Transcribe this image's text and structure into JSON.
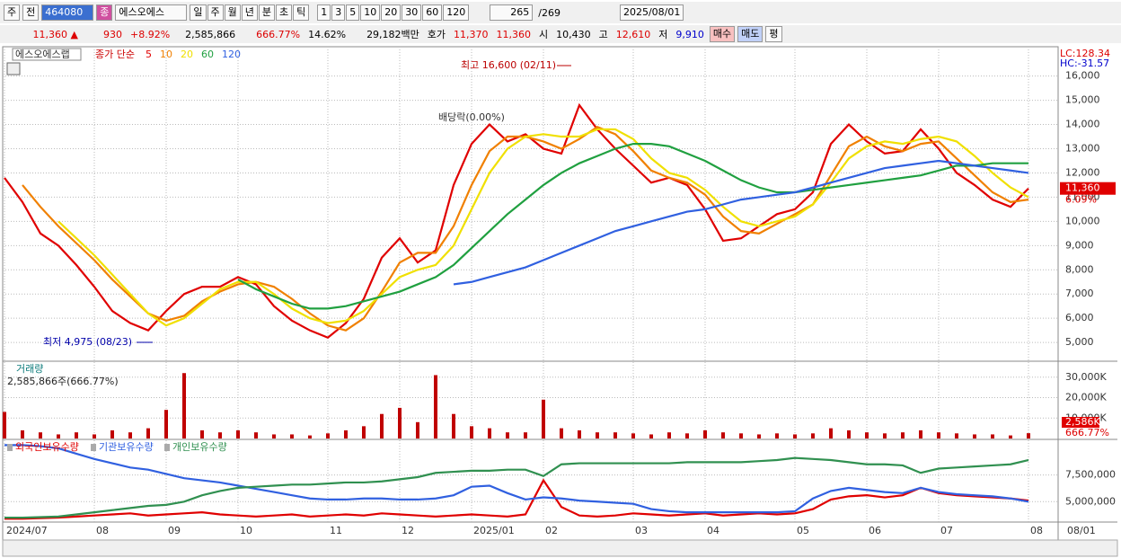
{
  "toolbar": {
    "market": "주",
    "prev": "전",
    "code": "464080",
    "badge": "종",
    "name": "에스오에스",
    "periods": [
      "일",
      "주",
      "월",
      "년",
      "분",
      "초",
      "틱"
    ],
    "intervals": [
      "1",
      "3",
      "5",
      "10",
      "20",
      "30",
      "60",
      "120"
    ],
    "count": "265",
    "total": "/269",
    "date": "2025/08/01"
  },
  "quote": {
    "price": "11,360 ▲",
    "change": "930",
    "change_pct": "+8.92%",
    "volume": "2,585,866",
    "volume_ratio": "666.77%",
    "turnover": "14.62%",
    "amount": "29,182백만",
    "ask_label": "호가",
    "ask": "11,370",
    "bid": "11,360",
    "open_label": "시",
    "open": "10,430",
    "high_label": "고",
    "high": "12,610",
    "low_label": "저",
    "low": "9,910",
    "buy": "매수",
    "sell": "매도",
    "avg": "평"
  },
  "chart_data": [
    {
      "type": "line",
      "title": "에스오에스랩",
      "subtitle": "종가 단순",
      "lc": "LC:128.34",
      "hc": "HC:-31.57",
      "last_label": "11,360",
      "last_pct": "6.09%",
      "last_value": 11360,
      "annotations": {
        "high": "최고 16,600 (02/11)",
        "low": "최저 4,975 (08/23)",
        "dividend": "배당락(0.00%)"
      },
      "categories": [
        "2024/07",
        null,
        null,
        null,
        null,
        "08",
        null,
        null,
        null,
        "09",
        null,
        null,
        null,
        "10",
        null,
        null,
        null,
        null,
        "11",
        null,
        null,
        null,
        "12",
        null,
        null,
        null,
        "2025/01",
        null,
        null,
        null,
        "02",
        null,
        null,
        null,
        null,
        "03",
        null,
        null,
        null,
        "04",
        null,
        null,
        null,
        null,
        "05",
        null,
        null,
        null,
        "06",
        null,
        null,
        null,
        "07",
        null,
        null,
        null,
        null,
        "08"
      ],
      "x_end_label": "08/01",
      "ylim": [
        4300,
        17100
      ],
      "yticks": [
        {
          "value": 5000,
          "label": "5,000"
        },
        {
          "value": 6000,
          "label": "6,000"
        },
        {
          "value": 7000,
          "label": "7,000"
        },
        {
          "value": 8000,
          "label": "8,000"
        },
        {
          "value": 9000,
          "label": "9,000"
        },
        {
          "value": 10000,
          "label": "10,000"
        },
        {
          "value": 11000,
          "label": "11,000"
        },
        {
          "value": 12000,
          "label": "12,000"
        },
        {
          "value": 13000,
          "label": "13,000"
        },
        {
          "value": 14000,
          "label": "14,000"
        },
        {
          "value": 15000,
          "label": "15,000"
        },
        {
          "value": 16000,
          "label": "16,000"
        }
      ],
      "grid": true,
      "series": [
        {
          "name": "5",
          "color": "#e00000",
          "values": [
            11800,
            10800,
            9500,
            9000,
            8200,
            7300,
            6300,
            5800,
            5500,
            6300,
            7000,
            7300,
            7300,
            7700,
            7400,
            6500,
            5900,
            5500,
            5200,
            5800,
            6800,
            8500,
            9300,
            8300,
            8800,
            11500,
            13200,
            14000,
            13300,
            13600,
            13000,
            12800,
            14800,
            13800,
            13000,
            12300,
            11600,
            11800,
            11500,
            10500,
            9200,
            9300,
            9800,
            10300,
            10500,
            11200,
            13200,
            14000,
            13300,
            12800,
            12900,
            13800,
            13000,
            12000,
            11500,
            10900,
            10600,
            11360
          ]
        },
        {
          "name": "10",
          "color": "#f08000",
          "values": [
            null,
            11500,
            10600,
            9800,
            9100,
            8400,
            7600,
            6900,
            6200,
            5900,
            6100,
            6700,
            7100,
            7400,
            7500,
            7300,
            6800,
            6200,
            5700,
            5500,
            6000,
            7100,
            8300,
            8700,
            8700,
            9800,
            11500,
            12900,
            13500,
            13500,
            13300,
            13000,
            13400,
            13900,
            13600,
            12900,
            12100,
            11800,
            11600,
            11100,
            10200,
            9600,
            9500,
            9900,
            10300,
            10700,
            11900,
            13100,
            13500,
            13100,
            12900,
            13200,
            13300,
            12600,
            11900,
            11200,
            10800,
            10900
          ]
        },
        {
          "name": "20",
          "color": "#f0e000",
          "values": [
            null,
            null,
            null,
            10000,
            9300,
            8600,
            7800,
            7000,
            6200,
            5700,
            6000,
            6600,
            7200,
            7500,
            7500,
            7000,
            6400,
            6000,
            5800,
            5900,
            6300,
            7000,
            7700,
            8000,
            8200,
            9000,
            10500,
            12000,
            13000,
            13500,
            13600,
            13500,
            13500,
            13800,
            13800,
            13400,
            12600,
            12000,
            11800,
            11300,
            10600,
            10000,
            9800,
            10000,
            10200,
            10700,
            11600,
            12600,
            13100,
            13300,
            13200,
            13400,
            13500,
            13300,
            12700,
            12000,
            11400,
            11000
          ]
        },
        {
          "name": "60",
          "color": "#20a040",
          "values": [
            null,
            null,
            null,
            null,
            null,
            null,
            null,
            null,
            null,
            null,
            null,
            null,
            null,
            7600,
            7200,
            6900,
            6600,
            6400,
            6400,
            6500,
            6700,
            6900,
            7100,
            7400,
            7700,
            8200,
            8900,
            9600,
            10300,
            10900,
            11500,
            12000,
            12400,
            12700,
            13000,
            13200,
            13200,
            13100,
            12800,
            12500,
            12100,
            11700,
            11400,
            11200,
            11200,
            11300,
            11400,
            11500,
            11600,
            11700,
            11800,
            11900,
            12100,
            12300,
            12300,
            12400,
            12400,
            12400
          ]
        },
        {
          "name": "120",
          "color": "#3060e0",
          "values": [
            null,
            null,
            null,
            null,
            null,
            null,
            null,
            null,
            null,
            null,
            null,
            null,
            null,
            null,
            null,
            null,
            null,
            null,
            null,
            null,
            null,
            null,
            null,
            null,
            null,
            7400,
            7500,
            7700,
            7900,
            8100,
            8400,
            8700,
            9000,
            9300,
            9600,
            9800,
            10000,
            10200,
            10400,
            10500,
            10700,
            10900,
            11000,
            11100,
            11200,
            11400,
            11600,
            11800,
            12000,
            12200,
            12300,
            12400,
            12500,
            12400,
            12300,
            12200,
            12100,
            12000
          ]
        }
      ]
    },
    {
      "type": "bar",
      "title": "거래량",
      "subtitle": "2,585,866주(666.77%)",
      "last_label": "2,586K",
      "last_pct": "666.77%",
      "color": "#c00000",
      "ylim": [
        0,
        36500
      ],
      "yticks": [
        {
          "value": 10000,
          "label": "10,000K"
        },
        {
          "value": 20000,
          "label": "20,000K"
        },
        {
          "value": 30000,
          "label": "30,000K"
        }
      ],
      "values": [
        13000,
        4000,
        3000,
        2000,
        3000,
        2000,
        4000,
        3000,
        5000,
        14000,
        32000,
        4000,
        3000,
        4000,
        3000,
        2000,
        2000,
        1500,
        2500,
        4000,
        6000,
        12000,
        15000,
        8000,
        31000,
        12000,
        6000,
        5000,
        3000,
        3000,
        19000,
        5000,
        4000,
        3000,
        3000,
        2500,
        2000,
        3000,
        2500,
        4000,
        3000,
        2500,
        2000,
        2500,
        2000,
        2500,
        5000,
        4000,
        3000,
        2500,
        3000,
        4000,
        3000,
        2500,
        2000,
        2000,
        1500,
        2586
      ]
    },
    {
      "type": "line",
      "ylim": [
        3170000,
        10670000
      ],
      "yticks": [
        {
          "value": 5000000,
          "label": "5,000,000"
        },
        {
          "value": 7500000,
          "label": "7,500,000"
        }
      ],
      "series": [
        {
          "name": "외국인보유수량",
          "color": "#e00000",
          "values": [
            3400000,
            3400000,
            3450000,
            3500000,
            3600000,
            3700000,
            3800000,
            3900000,
            3700000,
            3800000,
            3900000,
            4000000,
            3800000,
            3700000,
            3600000,
            3700000,
            3800000,
            3600000,
            3700000,
            3800000,
            3700000,
            3900000,
            3800000,
            3700000,
            3600000,
            3700000,
            3800000,
            3700000,
            3600000,
            3800000,
            7000000,
            4500000,
            3700000,
            3600000,
            3700000,
            3900000,
            3800000,
            3700000,
            3800000,
            3900000,
            3700000,
            3800000,
            3900000,
            3800000,
            3900000,
            4300000,
            5200000,
            5500000,
            5600000,
            5400000,
            5600000,
            6300000,
            5800000,
            5600000,
            5500000,
            5400000,
            5300000,
            5100000
          ]
        },
        {
          "name": "기관보유수량",
          "color": "#3060e0",
          "values": [
            10300000,
            10300000,
            10200000,
            10000000,
            9500000,
            9000000,
            8600000,
            8200000,
            8000000,
            7600000,
            7200000,
            7000000,
            6800000,
            6500000,
            6200000,
            5900000,
            5600000,
            5300000,
            5200000,
            5200000,
            5300000,
            5300000,
            5200000,
            5200000,
            5300000,
            5600000,
            6400000,
            6500000,
            5800000,
            5200000,
            5400000,
            5300000,
            5100000,
            5000000,
            4900000,
            4800000,
            4300000,
            4100000,
            4000000,
            4000000,
            4000000,
            4000000,
            4000000,
            4000000,
            4100000,
            5300000,
            6000000,
            6300000,
            6100000,
            5900000,
            5800000,
            6300000,
            5900000,
            5700000,
            5600000,
            5500000,
            5300000,
            5000000
          ]
        },
        {
          "name": "개인보유수량",
          "color": "#309050",
          "values": [
            3500000,
            3500000,
            3550000,
            3600000,
            3800000,
            4000000,
            4200000,
            4400000,
            4600000,
            4700000,
            5000000,
            5600000,
            6000000,
            6300000,
            6400000,
            6500000,
            6600000,
            6600000,
            6700000,
            6800000,
            6800000,
            6900000,
            7100000,
            7300000,
            7700000,
            7800000,
            7900000,
            7900000,
            8000000,
            8000000,
            7400000,
            8500000,
            8600000,
            8600000,
            8600000,
            8600000,
            8600000,
            8600000,
            8700000,
            8700000,
            8700000,
            8700000,
            8800000,
            8900000,
            9100000,
            9000000,
            8900000,
            8700000,
            8500000,
            8500000,
            8400000,
            7700000,
            8100000,
            8200000,
            8300000,
            8400000,
            8500000,
            8900000
          ]
        }
      ]
    }
  ]
}
